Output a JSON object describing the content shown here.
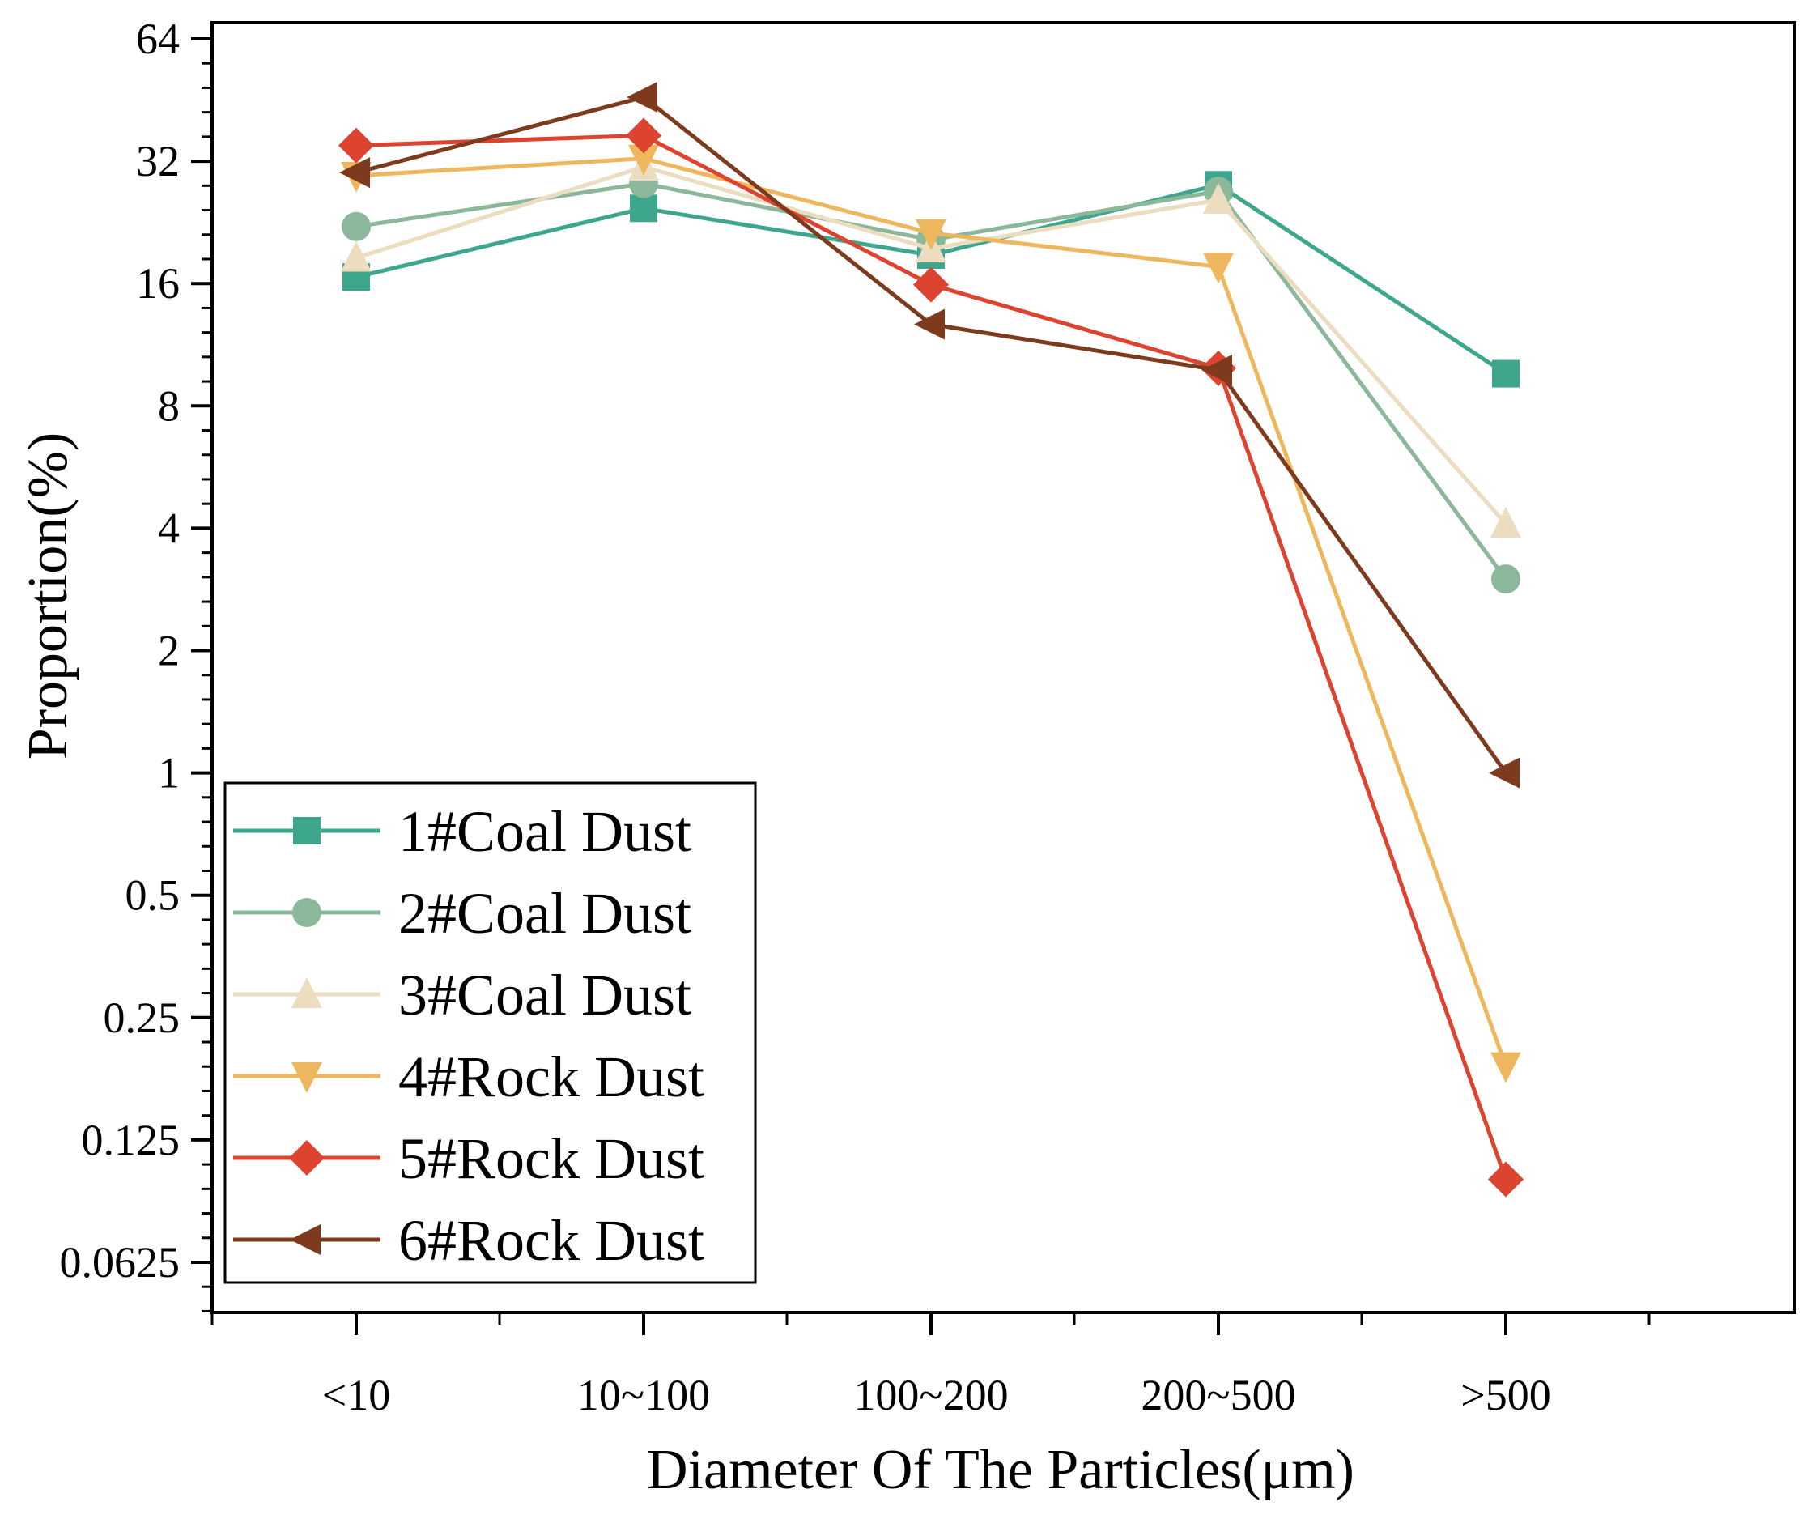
{
  "chart_data": {
    "type": "line",
    "xlabel": "Diameter Of The Particles(μm)",
    "ylabel": "Proportion(%)",
    "y_scale": "log2",
    "ylim": [
      0.0625,
      64
    ],
    "y_ticks": [
      "64",
      "32",
      "16",
      "8",
      "4",
      "2",
      "1",
      "0.5",
      "0.25",
      "0.125",
      "0.0625"
    ],
    "y_tick_values": [
      64,
      32,
      16,
      8,
      4,
      2,
      1,
      0.5,
      0.25,
      0.125,
      0.0625
    ],
    "categories": [
      "<10",
      "10~100",
      "100~200",
      "200~500",
      ">500"
    ],
    "legend_position": "bottom-left",
    "series": [
      {
        "name": "1#Coal Dust",
        "color": "#3fa68e",
        "marker": "square",
        "values": [
          16.6,
          24.5,
          18.8,
          28.0,
          9.6
        ]
      },
      {
        "name": "2#Coal Dust",
        "color": "#8bb79b",
        "marker": "circle",
        "values": [
          22.1,
          28.2,
          20.5,
          27.0,
          3.0
        ]
      },
      {
        "name": "3#Coal Dust",
        "color": "#ecdcc0",
        "marker": "triangle-up",
        "values": [
          18.5,
          31.0,
          19.5,
          25.7,
          4.1
        ]
      },
      {
        "name": "4#Rock Dust",
        "color": "#efb75d",
        "marker": "triangle-down",
        "values": [
          29.5,
          32.5,
          21.3,
          17.6,
          0.19
        ]
      },
      {
        "name": "5#Rock Dust",
        "color": "#dd4430",
        "marker": "diamond",
        "values": [
          35.0,
          37.0,
          15.9,
          9.9,
          0.1
        ]
      },
      {
        "name": "6#Rock Dust",
        "color": "#7e3a1c",
        "marker": "triangle-left",
        "values": [
          30.0,
          46.0,
          12.7,
          9.8,
          1.0
        ]
      }
    ]
  }
}
